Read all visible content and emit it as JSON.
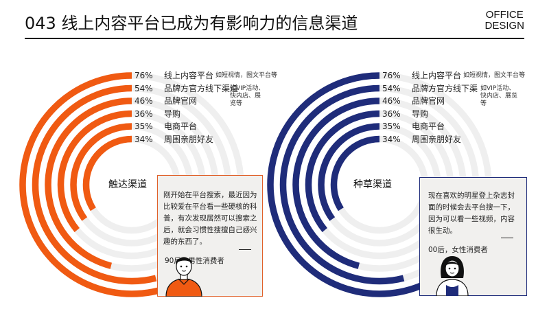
{
  "header": {
    "title": "043 线上内容平台已成为有影响力的信息渠道",
    "brand_line1": "OFFICE",
    "brand_line2": "DESIGN"
  },
  "colors": {
    "reach": "#f05a12",
    "seed": "#1f2c7a",
    "track": "#efefef"
  },
  "reach": {
    "center_label": "触达渠道",
    "rows": [
      {
        "pct": "76%",
        "label": "线上内容平台",
        "value": 76
      },
      {
        "pct": "54%",
        "label": "品牌方官方线下渠道",
        "value": 54
      },
      {
        "pct": "46%",
        "label": "品牌官网",
        "value": 46
      },
      {
        "pct": "36%",
        "label": "导购",
        "value": 36
      },
      {
        "pct": "35%",
        "label": "电商平台",
        "value": 35
      },
      {
        "pct": "34%",
        "label": "周围亲朋好友",
        "value": 34
      }
    ],
    "note_platform": "如短视情，图文平台等",
    "note_offline": "如VIP活动、快内店、展览等",
    "quote": "刚开始在平台搜索，最近因为比较爱在平台看一些硬核的科普，有次发现居然可以搜索之后，就会习惯性搜擅自己感兴趣的东西了。",
    "attribution": "90后，男性消费者"
  },
  "seed": {
    "center_label": "种草渠道",
    "rows": [
      {
        "pct": "76%",
        "label": "线上内容平台",
        "value": 76
      },
      {
        "pct": "54%",
        "label": "品牌方官方线下渠",
        "value": 54
      },
      {
        "pct": "46%",
        "label": "品牌官网",
        "value": 46
      },
      {
        "pct": "36%",
        "label": "导购",
        "value": 36
      },
      {
        "pct": "35%",
        "label": "电商平台",
        "value": 35
      },
      {
        "pct": "34%",
        "label": "周围亲朋好友",
        "value": 34
      }
    ],
    "note_platform": "如短视情，图文平台等",
    "note_offline": "如VIP活动、快内店、展览等",
    "quote": "现在喜欢的明星登上杂志封面的时候会去平台搜一下，因为可以看一些视频，内容很生动。",
    "attribution": "00后，女性消费者"
  }
}
